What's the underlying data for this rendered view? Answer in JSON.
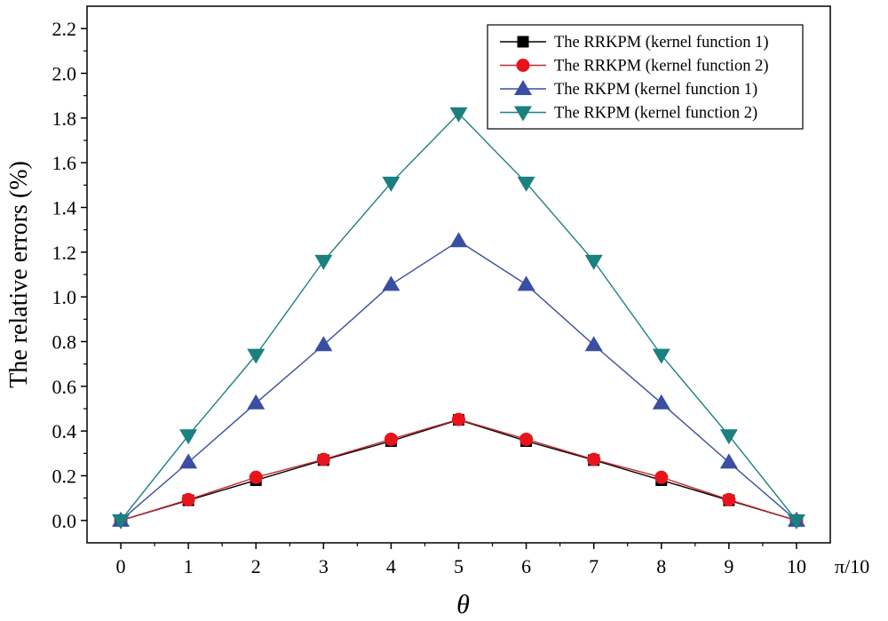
{
  "chart_data": {
    "type": "line",
    "title": "",
    "xlabel": "θ",
    "x_unit": "π/10",
    "ylabel": "The relative errors (%)",
    "x": [
      0,
      1,
      2,
      3,
      4,
      5,
      6,
      7,
      8,
      9,
      10
    ],
    "xlim": [
      -0.5,
      10.5
    ],
    "ylim": [
      -0.1,
      2.3
    ],
    "xticks": [
      0,
      1,
      2,
      3,
      4,
      5,
      6,
      7,
      8,
      9,
      10
    ],
    "yticks": [
      0.0,
      0.2,
      0.4,
      0.6,
      0.8,
      1.0,
      1.2,
      1.4,
      1.6,
      1.8,
      2.0,
      2.2
    ],
    "grid": false,
    "legend_position": "top-right",
    "series": [
      {
        "name": "The RRKPM (kernel function 1)",
        "marker": "square",
        "color": "#000000",
        "line_color": "#000000",
        "values": [
          0.0,
          0.09,
          0.18,
          0.27,
          0.355,
          0.45,
          0.355,
          0.27,
          0.18,
          0.09,
          0.0
        ]
      },
      {
        "name": "The RRKPM (kernel function 2)",
        "marker": "circle",
        "color": "#e8141c",
        "line_color": "#c0282e",
        "values": [
          0.0,
          0.093,
          0.193,
          0.273,
          0.363,
          0.452,
          0.363,
          0.273,
          0.193,
          0.093,
          0.0
        ]
      },
      {
        "name": "The RKPM (kernel function 1)",
        "marker": "triangle-up",
        "color": "#3a4ea3",
        "line_color": "#3a4ea3",
        "values": [
          0.0,
          0.26,
          0.525,
          0.785,
          1.055,
          1.25,
          1.055,
          0.785,
          0.525,
          0.26,
          0.0
        ]
      },
      {
        "name": "The RKPM (kernel function 2)",
        "marker": "triangle-down",
        "color": "#1a8080",
        "line_color": "#1a8080",
        "values": [
          0.0,
          0.38,
          0.74,
          1.16,
          1.51,
          1.82,
          1.51,
          1.16,
          0.74,
          0.38,
          0.0
        ]
      }
    ]
  }
}
